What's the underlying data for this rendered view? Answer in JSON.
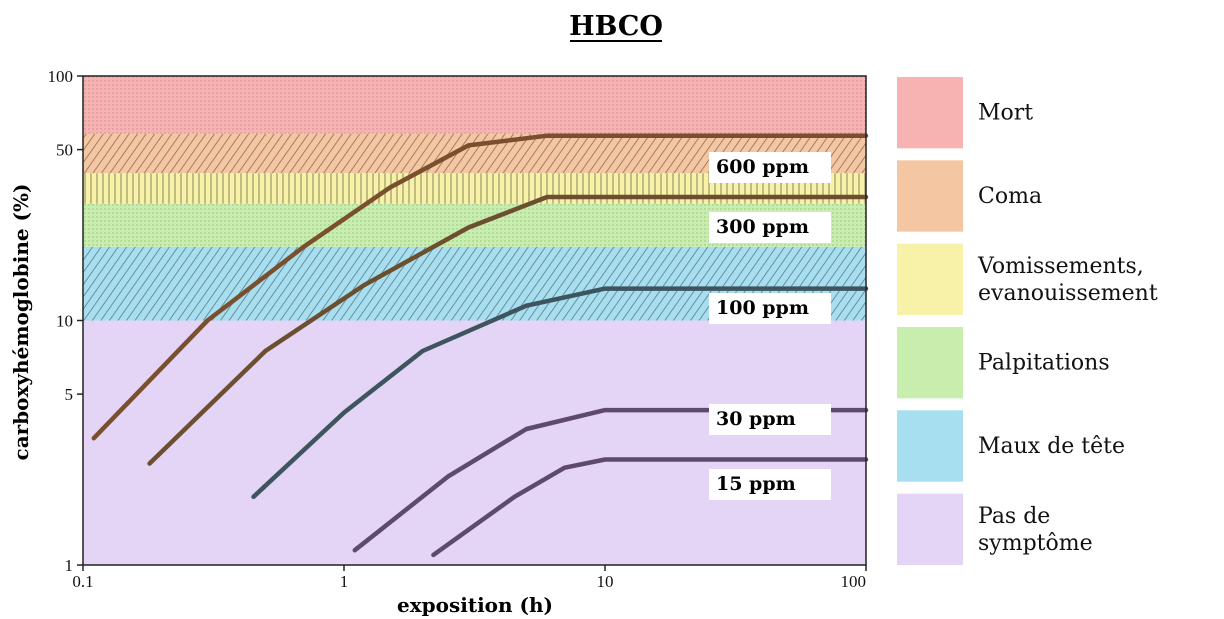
{
  "chart_data": {
    "type": "line",
    "title": "HBCO",
    "xlabel": "exposition (h)",
    "ylabel": "carboxyhémoglobine (%)",
    "x_scale": "log",
    "y_scale": "log",
    "xlim": [
      0.1,
      100
    ],
    "ylim": [
      1,
      100
    ],
    "x_ticks": [
      {
        "value": 0.1,
        "label": "0.1"
      },
      {
        "value": 1,
        "label": "1"
      },
      {
        "value": 10,
        "label": "10"
      },
      {
        "value": 100,
        "label": "100"
      }
    ],
    "y_ticks": [
      {
        "value": 1,
        "label": "1"
      },
      {
        "value": 5,
        "label": "5"
      },
      {
        "value": 10,
        "label": "10"
      },
      {
        "value": 50,
        "label": "50"
      },
      {
        "value": 100,
        "label": "100"
      }
    ],
    "bands": [
      {
        "name": "Mort",
        "lines": [
          "Mort"
        ],
        "from": 58,
        "to": 100,
        "color": "#f7b2b2",
        "pattern": "dots"
      },
      {
        "name": "Coma",
        "lines": [
          "Coma"
        ],
        "from": 40,
        "to": 58,
        "color": "#f5c6a2",
        "pattern": "diag"
      },
      {
        "name": "Vomissements, evanouissement",
        "lines": [
          "Vomissements,",
          "evanouissement"
        ],
        "from": 30,
        "to": 40,
        "color": "#f7f2a8",
        "pattern": "vert"
      },
      {
        "name": "Palpitations",
        "lines": [
          "Palpitations"
        ],
        "from": 20,
        "to": 30,
        "color": "#c8eeae",
        "pattern": "dots"
      },
      {
        "name": "Maux de tête",
        "lines": [
          "Maux de tête"
        ],
        "from": 10,
        "to": 20,
        "color": "#a7dff0",
        "pattern": "diag"
      },
      {
        "name": "Pas de symptôme",
        "lines": [
          "Pas de",
          "symptôme"
        ],
        "from": 1,
        "to": 10,
        "color": "#e4d4f6",
        "pattern": "none"
      }
    ],
    "series": [
      {
        "name": "600 ppm",
        "points": [
          [
            0.11,
            3.3
          ],
          [
            0.3,
            10
          ],
          [
            0.7,
            20
          ],
          [
            1.5,
            35
          ],
          [
            3,
            52
          ],
          [
            6,
            57
          ],
          [
            100,
            57
          ]
        ],
        "color": "#7a4f2e"
      },
      {
        "name": "300 ppm",
        "points": [
          [
            0.18,
            2.6
          ],
          [
            0.5,
            7.5
          ],
          [
            1.2,
            14
          ],
          [
            3,
            24
          ],
          [
            6,
            32
          ],
          [
            100,
            32
          ]
        ],
        "color": "#6b4f2e"
      },
      {
        "name": "100 ppm",
        "points": [
          [
            0.45,
            1.9
          ],
          [
            1,
            4.2
          ],
          [
            2,
            7.5
          ],
          [
            5,
            11.5
          ],
          [
            10,
            13.5
          ],
          [
            100,
            13.5
          ]
        ],
        "color": "#3e5560"
      },
      {
        "name": "30 ppm",
        "points": [
          [
            1.1,
            1.15
          ],
          [
            2.5,
            2.3
          ],
          [
            5,
            3.6
          ],
          [
            10,
            4.3
          ],
          [
            100,
            4.3
          ]
        ],
        "color": "#5e4a6c"
      },
      {
        "name": "15 ppm",
        "points": [
          [
            2.2,
            1.1
          ],
          [
            4.5,
            1.9
          ],
          [
            7,
            2.5
          ],
          [
            10,
            2.7
          ],
          [
            100,
            2.7
          ]
        ],
        "color": "#5e4a6c"
      }
    ]
  }
}
